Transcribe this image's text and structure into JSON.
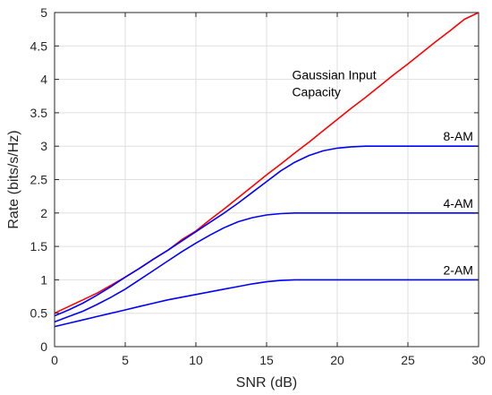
{
  "chart_data": {
    "type": "line",
    "xlabel": "SNR (dB)",
    "ylabel": "Rate (bits/s/Hz)",
    "xlim": [
      0,
      30
    ],
    "ylim": [
      0,
      5
    ],
    "grid": true,
    "x_ticks": [
      0,
      5,
      10,
      15,
      20,
      25,
      30
    ],
    "y_ticks": [
      0,
      0.5,
      1,
      1.5,
      2,
      2.5,
      3,
      3.5,
      4,
      4.5,
      5
    ],
    "x_tick_labels": [
      "0",
      "5",
      "10",
      "15",
      "20",
      "25",
      "30"
    ],
    "y_tick_labels": [
      "0",
      "0.5",
      "1",
      "1.5",
      "2",
      "2.5",
      "3",
      "3.5",
      "4",
      "4.5",
      "5"
    ],
    "series": [
      {
        "name": "Gaussian Input Capacity",
        "color": "#ff0000",
        "x": [
          0,
          1,
          2,
          3,
          4,
          5,
          6,
          7,
          8,
          9,
          10,
          11,
          12,
          13,
          14,
          15,
          16,
          17,
          18,
          19,
          20,
          21,
          22,
          23,
          24,
          25,
          26,
          27,
          28,
          29,
          30
        ],
        "y": [
          0.5,
          0.6,
          0.7,
          0.8,
          0.92,
          1.04,
          1.17,
          1.31,
          1.44,
          1.6,
          1.73,
          1.9,
          2.06,
          2.23,
          2.4,
          2.57,
          2.73,
          2.9,
          3.06,
          3.23,
          3.4,
          3.57,
          3.73,
          3.9,
          4.07,
          4.23,
          4.4,
          4.57,
          4.73,
          4.9,
          5.0
        ]
      },
      {
        "name": "8-AM",
        "color": "#0000ff",
        "x": [
          0,
          1,
          2,
          3,
          4,
          5,
          6,
          7,
          8,
          9,
          10,
          11,
          12,
          13,
          14,
          15,
          16,
          17,
          18,
          19,
          20,
          21,
          22,
          23,
          24,
          25,
          26,
          27,
          28,
          29,
          30
        ],
        "y": [
          0.46,
          0.55,
          0.65,
          0.77,
          0.9,
          1.04,
          1.17,
          1.31,
          1.44,
          1.58,
          1.72,
          1.86,
          2.0,
          2.15,
          2.31,
          2.47,
          2.63,
          2.76,
          2.86,
          2.93,
          2.97,
          2.99,
          3.0,
          3.0,
          3.0,
          3.0,
          3.0,
          3.0,
          3.0,
          3.0,
          3.0
        ]
      },
      {
        "name": "4-AM",
        "color": "#0000ff",
        "x": [
          0,
          1,
          2,
          3,
          4,
          5,
          6,
          7,
          8,
          9,
          10,
          11,
          12,
          13,
          14,
          15,
          16,
          17,
          18,
          19,
          20,
          21,
          22,
          23,
          24,
          25,
          26,
          27,
          28,
          29,
          30
        ],
        "y": [
          0.37,
          0.45,
          0.53,
          0.63,
          0.74,
          0.86,
          1.0,
          1.14,
          1.28,
          1.42,
          1.55,
          1.67,
          1.78,
          1.87,
          1.93,
          1.97,
          1.99,
          2.0,
          2.0,
          2.0,
          2.0,
          2.0,
          2.0,
          2.0,
          2.0,
          2.0,
          2.0,
          2.0,
          2.0,
          2.0,
          2.0
        ]
      },
      {
        "name": "2-AM",
        "color": "#0000ff",
        "x": [
          0,
          1,
          2,
          3,
          4,
          5,
          6,
          7,
          8,
          9,
          10,
          11,
          12,
          13,
          14,
          15,
          16,
          17,
          18,
          19,
          20,
          21,
          22,
          23,
          24,
          25,
          26,
          27,
          28,
          29,
          30
        ],
        "y": [
          0.3,
          0.35,
          0.4,
          0.45,
          0.5,
          0.55,
          0.6,
          0.65,
          0.7,
          0.74,
          0.78,
          0.82,
          0.86,
          0.9,
          0.94,
          0.97,
          0.99,
          1.0,
          1.0,
          1.0,
          1.0,
          1.0,
          1.0,
          1.0,
          1.0,
          1.0,
          1.0,
          1.0,
          1.0,
          1.0,
          1.0
        ]
      }
    ],
    "annotations": [
      {
        "text": "Gaussian Input",
        "x": 16.8,
        "y": 4.0
      },
      {
        "text": "Capacity",
        "x": 16.8,
        "y": 3.75
      },
      {
        "text": "8-AM",
        "x": 27.5,
        "y": 3.08
      },
      {
        "text": "4-AM",
        "x": 27.5,
        "y": 2.08
      },
      {
        "text": "2-AM",
        "x": 27.5,
        "y": 1.08
      }
    ]
  }
}
